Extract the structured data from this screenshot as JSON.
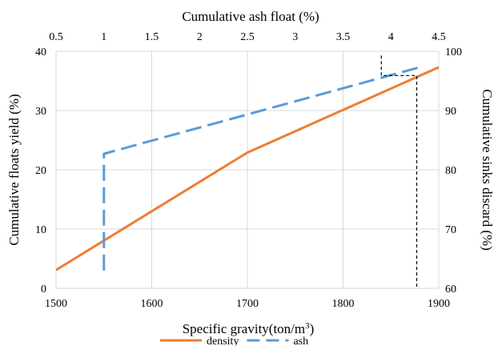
{
  "chart_data": {
    "type": "line",
    "title": "",
    "xlabel": "Specific gravity(ton/m³)",
    "xlabel_base": "Specific gravity(ton/m",
    "xlabel_sup": "3",
    "xlabel_tail": ")",
    "x2label": "Cumulative ash float (%)",
    "ylabel": "Cumulative floats yield (%)",
    "y2label": "Cumulative sinks discard (%)",
    "xlim": [
      1500,
      1900
    ],
    "x2lim": [
      0.5,
      4.5
    ],
    "ylim": [
      0,
      40
    ],
    "y2lim": [
      100,
      60
    ],
    "y2_reversed": true,
    "xticks": [
      1500,
      1600,
      1700,
      1800,
      1900
    ],
    "x2ticks": [
      "0.5",
      "1",
      "1.5",
      "2",
      "2.5",
      "3",
      "3.5",
      "4",
      "4.5"
    ],
    "yticks": [
      0,
      10,
      20,
      30,
      40
    ],
    "y2ticks": [
      60,
      70,
      80,
      90,
      100
    ],
    "grid": true,
    "legend_position": "bottom",
    "series": [
      {
        "name": "density",
        "axis": "x",
        "color": "#ED7D31",
        "style": "solid",
        "x": [
          1500,
          1700,
          1900
        ],
        "y": [
          3.1,
          22.9,
          37.3
        ]
      },
      {
        "name": "ash",
        "axis": "x2",
        "color": "#5B9BD5",
        "style": "dashed",
        "x": [
          1,
          1,
          1,
          4.3
        ],
        "y": [
          3,
          20.5,
          22.7,
          37.3
        ]
      }
    ],
    "annotations": [
      {
        "type": "reference-lines",
        "color": "#000000",
        "style": "dashed",
        "points_x": [
          1840,
          1840,
          1877,
          1877
        ],
        "points_y": [
          39.3,
          35.9,
          35.9,
          0
        ]
      }
    ]
  }
}
